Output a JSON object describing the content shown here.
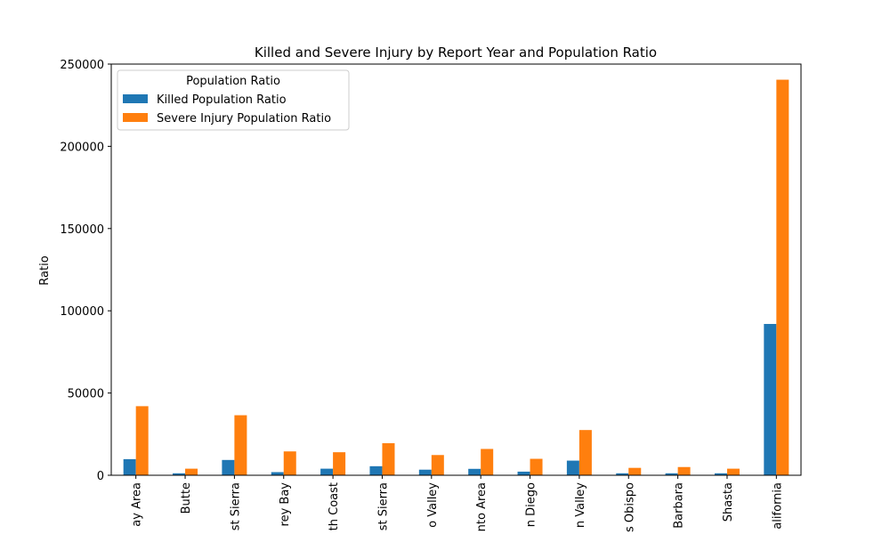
{
  "chart_data": {
    "type": "bar",
    "title": "Killed and Severe Injury by Report Year and Population Ratio",
    "xlabel": "",
    "ylabel": "Ratio",
    "ylim": [
      0,
      250000
    ],
    "yticks": [
      0,
      50000,
      100000,
      150000,
      200000,
      250000
    ],
    "categories": [
      "ay Area",
      "Butte",
      "st Sierra",
      "rey Bay",
      "th Coast",
      "st Sierra",
      "o Valley",
      "nto Area",
      "n Diego",
      "n Valley",
      "s Obispo",
      "Barbara",
      "Shasta",
      "alifornia"
    ],
    "series": [
      {
        "name": "Killed Population Ratio",
        "color": "#1f77b4",
        "values": [
          9800,
          1200,
          9300,
          1900,
          4000,
          5500,
          3400,
          3900,
          2200,
          8900,
          1200,
          1200,
          1200,
          92000
        ]
      },
      {
        "name": "Severe Injury Population Ratio",
        "color": "#ff7f0e",
        "values": [
          42000,
          4000,
          36500,
          14500,
          14000,
          19500,
          12300,
          16000,
          10000,
          27500,
          4500,
          5000,
          4000,
          240500
        ]
      }
    ],
    "legend": {
      "title": "Population Ratio",
      "placement": "top-left"
    },
    "grid": false
  }
}
